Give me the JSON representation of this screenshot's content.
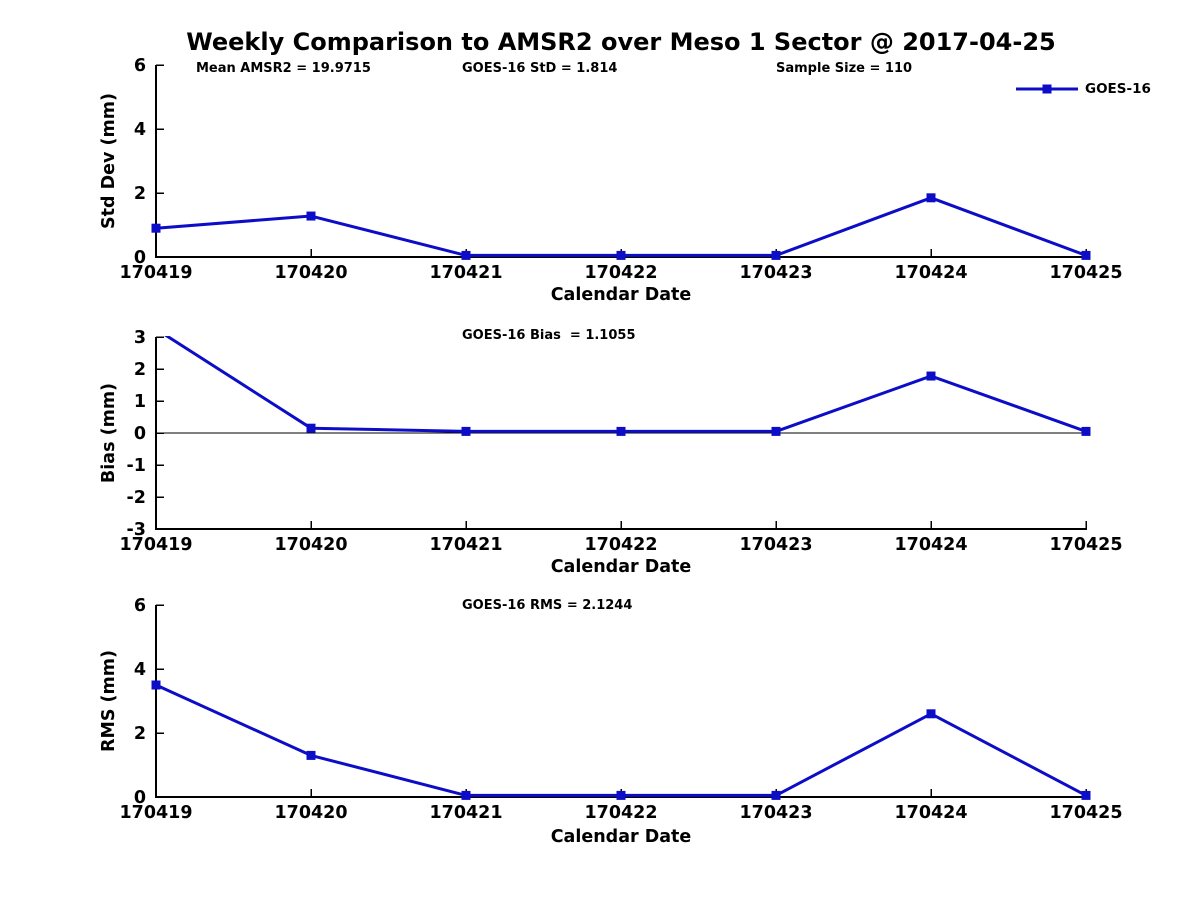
{
  "title": "Weekly Comparison to AMSR2 over Meso 1 Sector @ 2017-04-25",
  "legend": {
    "label": "GOES-16",
    "position": "upper right"
  },
  "colors": {
    "line": "#0d0dc8",
    "axis": "#000000",
    "text": "#000000",
    "background": "#ffffff"
  },
  "chart_data": [
    {
      "type": "line",
      "panel": "std-dev",
      "annotations": [
        "Mean AMSR2 = 19.9715",
        "GOES-16 StD = 1.814",
        "Sample Size = 110"
      ],
      "categories": [
        "170419",
        "170420",
        "170421",
        "170422",
        "170423",
        "170424",
        "170425"
      ],
      "series": [
        {
          "name": "GOES-16",
          "values": [
            0.9,
            1.28,
            0.05,
            0.05,
            0.05,
            1.85,
            0.05
          ]
        }
      ],
      "xlabel": "Calendar Date",
      "ylabel": "Std Dev (mm)",
      "ylim": [
        0,
        6
      ],
      "yticks": [
        0,
        2,
        4,
        6
      ],
      "grid": false,
      "zero_line": false
    },
    {
      "type": "line",
      "panel": "bias",
      "annotations": [
        "GOES-16 Bias  = 1.1055"
      ],
      "categories": [
        "170419",
        "170420",
        "170421",
        "170422",
        "170423",
        "170424",
        "170425"
      ],
      "series": [
        {
          "name": "GOES-16",
          "values": [
            3.25,
            0.15,
            0.05,
            0.05,
            0.05,
            1.78,
            0.05
          ]
        }
      ],
      "xlabel": "Calendar Date",
      "ylabel": "Bias (mm)",
      "ylim": [
        -3,
        3
      ],
      "yticks": [
        -3,
        -2,
        -1,
        0,
        1,
        2,
        3
      ],
      "grid": false,
      "zero_line": true
    },
    {
      "type": "line",
      "panel": "rms",
      "annotations": [
        "GOES-16 RMS = 2.1244"
      ],
      "categories": [
        "170419",
        "170420",
        "170421",
        "170422",
        "170423",
        "170424",
        "170425"
      ],
      "series": [
        {
          "name": "GOES-16",
          "values": [
            3.5,
            1.3,
            0.05,
            0.05,
            0.05,
            2.6,
            0.05
          ]
        }
      ],
      "xlabel": "Calendar Date",
      "ylabel": "RMS (mm)",
      "ylim": [
        0,
        6
      ],
      "yticks": [
        0,
        2,
        4,
        6
      ],
      "grid": false,
      "zero_line": false
    }
  ]
}
